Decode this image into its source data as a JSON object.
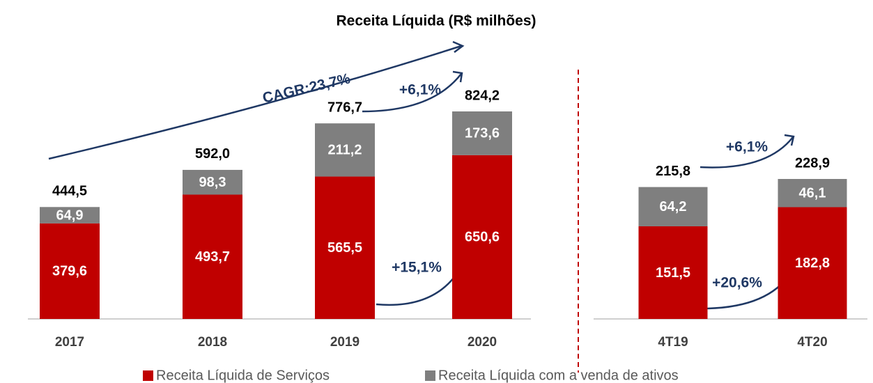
{
  "chart_data": {
    "type": "bar",
    "stacked": true,
    "title": "Receita Líquida (R$ milhões)",
    "categories": [
      "2017",
      "2018",
      "2019",
      "2020",
      "4T19",
      "4T20"
    ],
    "series": [
      {
        "name": "Receita Líquida de Serviços",
        "color": "#c00000",
        "values": [
          379.6,
          493.7,
          565.5,
          650.6,
          151.5,
          182.8
        ],
        "value_labels": [
          "379,6",
          "493,7",
          "565,5",
          "650,6",
          "151,5",
          "182,8"
        ]
      },
      {
        "name": "Receita Líquida com a venda de ativos",
        "color": "#7f7f7f",
        "values": [
          64.9,
          98.3,
          211.2,
          173.6,
          64.2,
          46.1
        ],
        "value_labels": [
          "64,9",
          "98,3",
          "211,2",
          "173,6",
          "64,2",
          "46,1"
        ]
      }
    ],
    "totals": {
      "values": [
        444.5,
        592.0,
        776.7,
        824.2,
        215.8,
        228.9
      ],
      "value_labels": [
        "444,5",
        "592,0",
        "776,7",
        "824,2",
        "215,8",
        "228,9"
      ]
    },
    "annotations": [
      "CAGR:23,7%",
      "+6,1%",
      "+15,1%",
      "+6,1%",
      "+20,6%"
    ]
  }
}
